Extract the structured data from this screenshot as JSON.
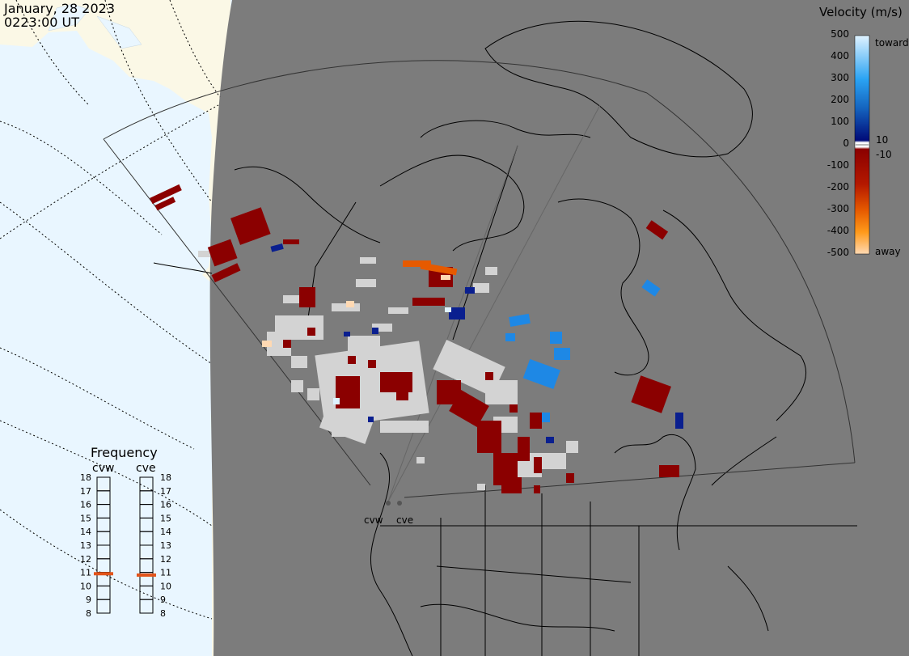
{
  "header": {
    "date": "January, 28 2023",
    "time": "0223:00 UT"
  },
  "legend": {
    "title": "Velocity (m/s)",
    "ticks": [
      "500",
      "400",
      "300",
      "200",
      "100",
      "10",
      "0",
      "-10",
      "-100",
      "-200",
      "-300",
      "-400",
      "-500"
    ],
    "toward_label": "toward",
    "away_label": "away",
    "colors": {
      "toward_high": "#dff2ff",
      "toward_mid": "#1e88e5",
      "toward_low": "#0a1f8f",
      "ground_scatter": "#d3d3d3",
      "away_low": "#8b0000",
      "away_mid": "#e65a00",
      "away_high": "#ffd9b3"
    }
  },
  "frequency": {
    "title": "Frequency",
    "radars": [
      {
        "name": "cvw",
        "value": 10.9
      },
      {
        "name": "cve",
        "value": 10.8
      }
    ],
    "scale": [
      "18",
      "17",
      "16",
      "15",
      "14",
      "13",
      "12",
      "11",
      "10",
      "9",
      "8"
    ]
  },
  "map": {
    "sites": [
      {
        "label": "cvw"
      },
      {
        "label": "cve"
      }
    ],
    "colors": {
      "night": "#7c7c7c",
      "ocean_day": "#e9f6ff",
      "land_day": "#fbf8e6",
      "coast": "#000000",
      "grid": "#000000",
      "fov": "#222222",
      "frequency_marker": "#e2541a"
    }
  }
}
